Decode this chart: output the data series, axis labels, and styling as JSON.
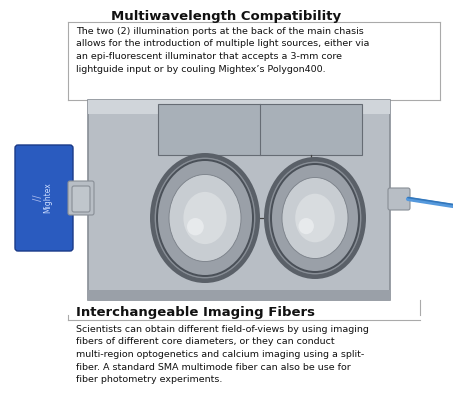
{
  "title": "Multiwavelength Compatibility",
  "top_text": "The two (2) illumination ports at the back of the main chasis\nallows for the introduction of multiple light sources, either via\nan epi-fluorescent illuminator that accepts a 3-mm core\nlightguide input or by couling Mightex’s Polygon400.",
  "bottom_title": "Interchangeable Imaging Fibers",
  "bottom_text": "Scientists can obtain different field-of-views by using imaging\nfibers of different core diameters, or they can conduct\nmulti-region optogenetics and calcium imaging using a split-\nfiber. A standard SMA multimode fiber can also be use for\nfiber photometry experiments.",
  "bg_color": "#ffffff",
  "box_face": "#b8bec5",
  "box_top_face": "#c8cdd2",
  "box_edge": "#888e96",
  "circle_dark": "#6a7078",
  "circle_mid": "#9aa2aa",
  "circle_light": "#c8cdd2",
  "circle_bright": "#dde0e4",
  "blue_cam": "#2a5bbf",
  "blue_cam_dark": "#1a3a88",
  "cam_connector": "#9aa2aa",
  "cable_color": "#5599dd",
  "text_color": "#111111",
  "gray_line": "#999999",
  "title_fontsize": 9.5,
  "body_fontsize": 6.8
}
